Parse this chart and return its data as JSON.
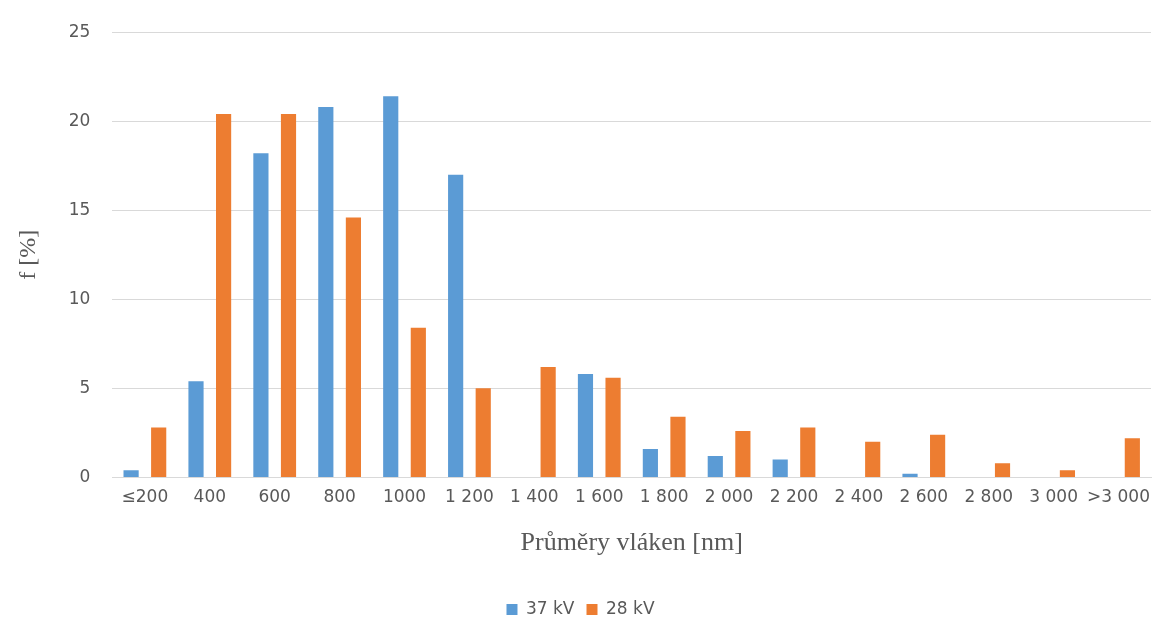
{
  "chart_data": {
    "type": "bar",
    "xlabel": "Průměry vláken [nm]",
    "ylabel": "f [%]",
    "categories": [
      "≤200",
      "400",
      "600",
      "800",
      "1000",
      "1 200",
      "1 400",
      "1 600",
      "1 800",
      "2 000",
      "2 200",
      "2 400",
      "2 600",
      "2 800",
      "3 000",
      ">3 000"
    ],
    "series": [
      {
        "name": "37 kV",
        "color": "#5b9bd5",
        "values": [
          0.4,
          5.4,
          18.2,
          20.8,
          21.4,
          17,
          0,
          5.8,
          1.6,
          1.2,
          1.0,
          0,
          0.2,
          0,
          0,
          0
        ]
      },
      {
        "name": "28 kV",
        "color": "#ed7d31",
        "values": [
          2.8,
          20.4,
          20.4,
          14.6,
          8.4,
          5.0,
          6.2,
          5.6,
          3.4,
          2.6,
          2.8,
          2.0,
          2.4,
          0.8,
          0.4,
          2.2
        ]
      }
    ],
    "ylim": [
      0,
      25
    ],
    "yticks": [
      0,
      5,
      10,
      15,
      20,
      25
    ],
    "grid": "y",
    "legend": "bottom"
  }
}
